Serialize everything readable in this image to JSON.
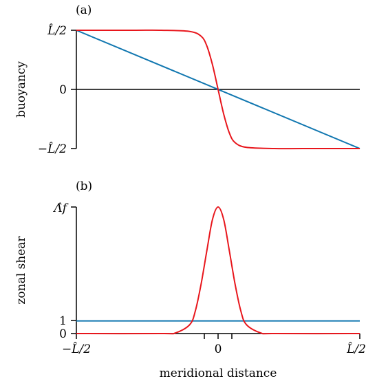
{
  "figure": {
    "xlabel": "meridional distance",
    "x_ticks": [
      "−L̂/2",
      "0",
      "L̂/2"
    ]
  },
  "colors": {
    "red": "#e8161c",
    "blue": "#1177b0",
    "axis": "#000000"
  },
  "chart_data": [
    {
      "type": "line",
      "panel_label": "(a)",
      "ylabel": "buoyancy",
      "y_tick_labels": [
        "L̂/2",
        "0",
        "−L̂/2"
      ],
      "xlim": [
        -0.5,
        0.5
      ],
      "ylim": [
        -0.5,
        0.5
      ],
      "zero_line": true,
      "series": [
        {
          "color": "#1177b0",
          "x": [
            -0.5,
            0.5
          ],
          "y": [
            0.5,
            -0.5
          ]
        },
        {
          "color": "#e8161c",
          "x": [
            -0.5,
            -0.3,
            -0.2,
            -0.1,
            -0.06,
            -0.04,
            -0.02,
            0,
            0.02,
            0.04,
            0.06,
            0.1,
            0.2,
            0.3,
            0.5
          ],
          "y": [
            0.5,
            0.5,
            0.5,
            0.49,
            0.45,
            0.37,
            0.21,
            0,
            -0.21,
            -0.37,
            -0.45,
            -0.49,
            -0.5,
            -0.5,
            -0.5
          ]
        }
      ]
    },
    {
      "type": "line",
      "panel_label": "(b)",
      "ylabel": "zonal shear",
      "y_tick_labels": [
        "Λ̂f",
        "1",
        "0"
      ],
      "xlim": [
        -0.5,
        0.5
      ],
      "ylim": [
        0,
        10
      ],
      "series": [
        {
          "color": "#1177b0",
          "x": [
            -0.5,
            0.5
          ],
          "y": [
            1,
            1
          ]
        },
        {
          "color": "#e8161c",
          "x": [
            -0.5,
            -0.2,
            -0.15,
            -0.1,
            -0.08,
            -0.06,
            -0.04,
            -0.02,
            0,
            0.02,
            0.04,
            0.06,
            0.08,
            0.1,
            0.15,
            0.2,
            0.5
          ],
          "y": [
            0,
            0,
            0.05,
            0.7,
            1.8,
            3.9,
            6.5,
            9.0,
            10,
            9.0,
            6.5,
            3.9,
            1.8,
            0.7,
            0.05,
            0,
            0
          ]
        }
      ]
    }
  ]
}
